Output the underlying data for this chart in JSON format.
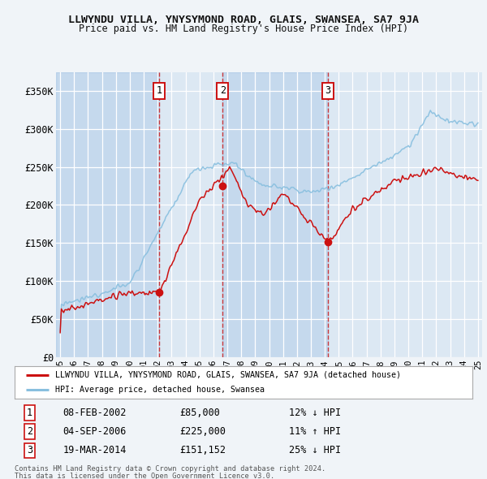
{
  "title1": "LLWYNDU VILLA, YNYSYMOND ROAD, GLAIS, SWANSEA, SA7 9JA",
  "title2": "Price paid vs. HM Land Registry's House Price Index (HPI)",
  "background_color": "#f0f4f8",
  "plot_bg_color": "#dce8f3",
  "grid_color": "#ffffff",
  "hpi_color": "#88bfdf",
  "price_color": "#cc1111",
  "yticks": [
    0,
    50000,
    100000,
    150000,
    200000,
    250000,
    300000,
    350000
  ],
  "ytick_labels": [
    "£0",
    "£50K",
    "£100K",
    "£150K",
    "£200K",
    "£250K",
    "£300K",
    "£350K"
  ],
  "ylim": [
    0,
    375000
  ],
  "xlim_start": 1994.7,
  "xlim_end": 2025.3,
  "xticks": [
    1995,
    1996,
    1997,
    1998,
    1999,
    2000,
    2001,
    2002,
    2003,
    2004,
    2005,
    2006,
    2007,
    2008,
    2009,
    2010,
    2011,
    2012,
    2013,
    2014,
    2015,
    2016,
    2017,
    2018,
    2019,
    2020,
    2021,
    2022,
    2023,
    2024,
    2025
  ],
  "transactions": [
    {
      "num": 1,
      "date": "08-FEB-2002",
      "price": 85000,
      "year": 2002.1,
      "pct": "12%",
      "dir": "↓"
    },
    {
      "num": 2,
      "date": "04-SEP-2006",
      "price": 225000,
      "year": 2006.67,
      "pct": "11%",
      "dir": "↑"
    },
    {
      "num": 3,
      "date": "19-MAR-2014",
      "price": 151152,
      "year": 2014.21,
      "pct": "25%",
      "dir": "↓"
    }
  ],
  "legend_house_label": "LLWYNDU VILLA, YNYSYMOND ROAD, GLAIS, SWANSEA, SA7 9JA (detached house)",
  "legend_hpi_label": "HPI: Average price, detached house, Swansea",
  "footer1": "Contains HM Land Registry data © Crown copyright and database right 2024.",
  "footer2": "This data is licensed under the Open Government Licence v3.0."
}
